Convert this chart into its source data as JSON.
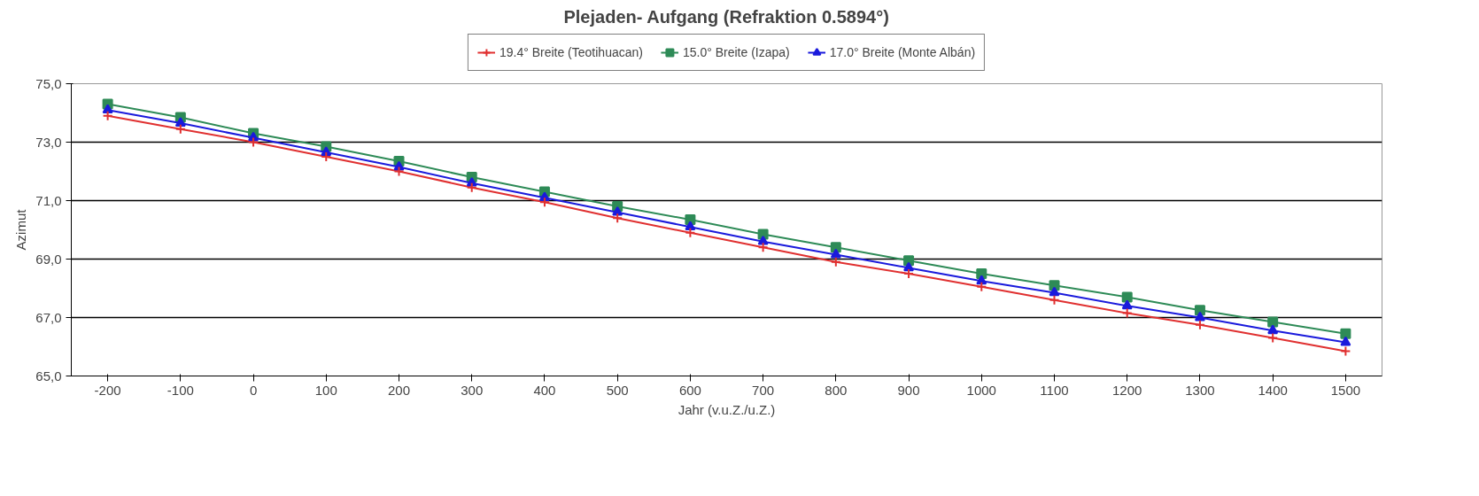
{
  "chart_data": {
    "type": "line",
    "title": "Plejaden- Aufgang (Refraktion 0.5894°)",
    "xlabel": "Jahr (v.u.Z./u.Z.)",
    "ylabel": "Azimut",
    "categories": [
      "-200",
      "-100",
      "0",
      "100",
      "200",
      "300",
      "400",
      "500",
      "600",
      "700",
      "800",
      "900",
      "1000",
      "1100",
      "1200",
      "1300",
      "1400",
      "1500"
    ],
    "series": [
      {
        "name": "19.4° Breite (Teotihuacan)",
        "color": "#e03030",
        "marker": "cross",
        "values": [
          73.9,
          73.45,
          73.0,
          72.5,
          72.0,
          71.45,
          70.95,
          70.4,
          69.9,
          69.4,
          68.9,
          68.5,
          68.05,
          67.6,
          67.15,
          66.75,
          66.3,
          65.85
        ]
      },
      {
        "name": "15.0° Breite (Izapa)",
        "color": "#2e8b57",
        "marker": "square",
        "values": [
          74.3,
          73.85,
          73.3,
          72.85,
          72.35,
          71.8,
          71.3,
          70.8,
          70.35,
          69.85,
          69.4,
          68.95,
          68.5,
          68.1,
          67.7,
          67.25,
          66.85,
          66.45
        ]
      },
      {
        "name": "17.0° Breite (Monte Albán)",
        "color": "#1a1adc",
        "marker": "triangle",
        "values": [
          74.1,
          73.65,
          73.15,
          72.65,
          72.15,
          71.6,
          71.1,
          70.6,
          70.1,
          69.6,
          69.15,
          68.7,
          68.25,
          67.85,
          67.4,
          67.0,
          66.55,
          66.15
        ]
      }
    ],
    "ylim": [
      65,
      75
    ],
    "yticks": [
      {
        "value": 65,
        "label": "65,0"
      },
      {
        "value": 67,
        "label": "67,0"
      },
      {
        "value": 69,
        "label": "69,0"
      },
      {
        "value": 71,
        "label": "71,0"
      },
      {
        "value": 73,
        "label": "73,0"
      },
      {
        "value": 75,
        "label": "75,0"
      }
    ],
    "grid": "y",
    "legend": "top",
    "line_style": "solid"
  }
}
